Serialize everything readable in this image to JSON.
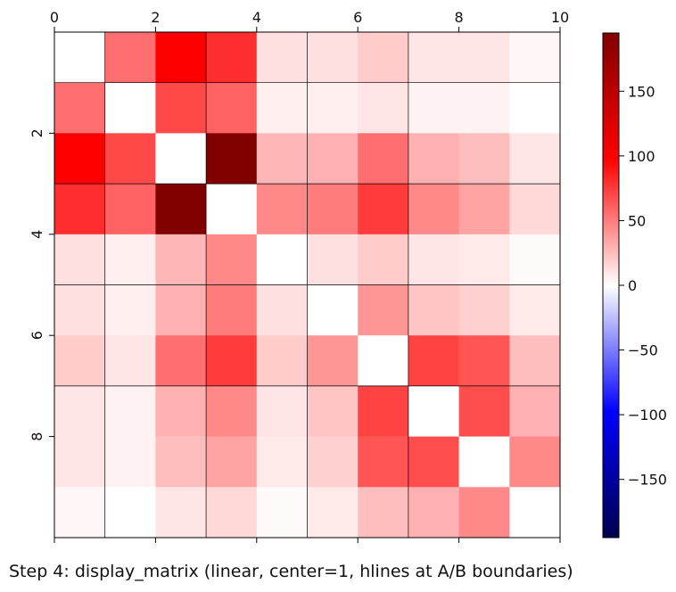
{
  "caption": "Step 4: display_matrix (linear, center=1, hlines at A/B boundaries)",
  "chart_data": {
    "type": "heatmap",
    "title": "",
    "xlabel": "",
    "ylabel": "",
    "x_ticks": [
      0,
      2,
      4,
      6,
      8,
      10
    ],
    "y_ticks": [
      2,
      4,
      6,
      8
    ],
    "x_range": [
      0,
      10
    ],
    "y_range": [
      0,
      10
    ],
    "colormap": "seismic",
    "color_range": [
      -195,
      195
    ],
    "colorbar_ticks": [
      150,
      100,
      50,
      0,
      -50,
      -100,
      -150
    ],
    "colorbar_tick_labels": [
      "150",
      "100",
      "50",
      "0",
      "−50",
      "−100",
      "−150"
    ],
    "boundary_lines": [
      1,
      3,
      5,
      7
    ],
    "values": [
      [
        0,
        55,
        100,
        80,
        12,
        12,
        20,
        10,
        10,
        3
      ],
      [
        55,
        0,
        70,
        60,
        6,
        6,
        10,
        5,
        5,
        0
      ],
      [
        100,
        70,
        0,
        195,
        28,
        30,
        55,
        30,
        25,
        10
      ],
      [
        80,
        60,
        195,
        0,
        45,
        50,
        75,
        45,
        35,
        15
      ],
      [
        12,
        6,
        28,
        45,
        0,
        12,
        20,
        10,
        8,
        2
      ],
      [
        12,
        6,
        30,
        50,
        12,
        0,
        40,
        22,
        18,
        8
      ],
      [
        20,
        10,
        55,
        75,
        20,
        40,
        0,
        72,
        65,
        25
      ],
      [
        10,
        5,
        30,
        45,
        10,
        22,
        72,
        0,
        68,
        30
      ],
      [
        10,
        5,
        25,
        35,
        8,
        18,
        65,
        68,
        0,
        45
      ],
      [
        3,
        0,
        10,
        15,
        2,
        8,
        25,
        30,
        45,
        0
      ]
    ]
  }
}
